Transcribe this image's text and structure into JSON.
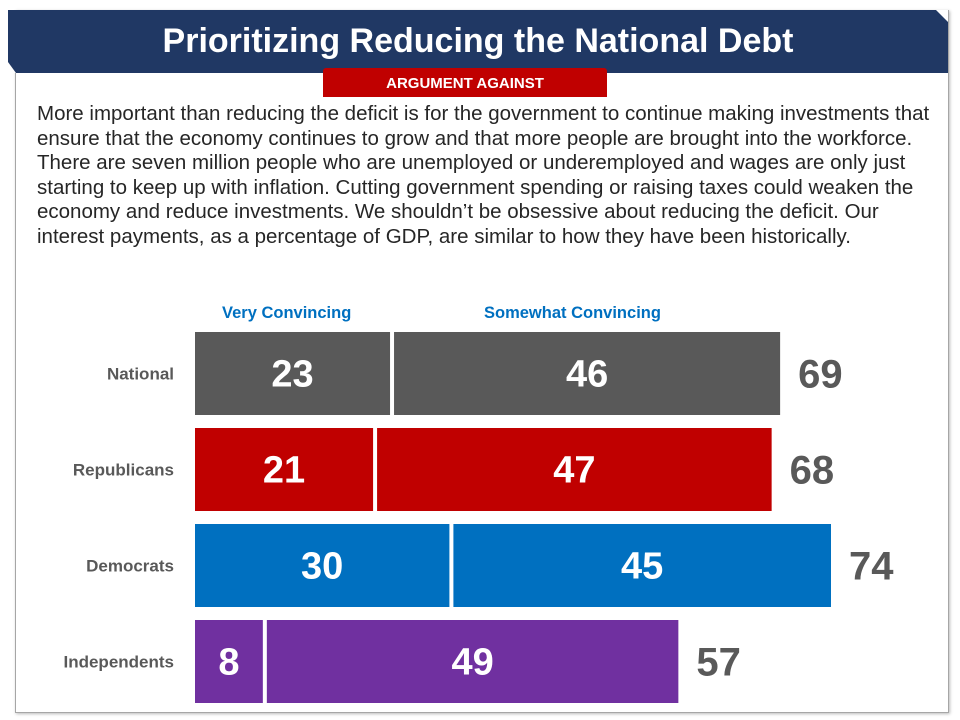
{
  "header": {
    "title": "Prioritizing Reducing the National Debt",
    "tab": "ARGUMENT AGAINST"
  },
  "body_text": "More important than reducing the deficit is for the government to continue making investments that ensure that the economy continues to grow and that more people are brought into the workforce. There are seven million people who are unemployed or underemployed and wages are only just starting to keep up with inflation. Cutting government spending or raising taxes could weaken the economy and reduce investments. We shouldn’t be obsessive about reducing the deficit. Our interest payments, as a percentage of GDP, are similar to how they have been historically.",
  "chart_data": {
    "type": "bar",
    "orientation": "horizontal",
    "stacked": true,
    "categories": [
      "National",
      "Republicans",
      "Democrats",
      "Independents"
    ],
    "series": [
      {
        "name": "Very Convincing",
        "values": [
          23,
          21,
          30,
          8
        ]
      },
      {
        "name": "Somewhat Convincing",
        "values": [
          46,
          47,
          45,
          49
        ]
      }
    ],
    "totals": [
      69,
      68,
      74,
      57
    ],
    "colors": [
      "#595959",
      "#c00000",
      "#0070c0",
      "#7030a0"
    ],
    "legend_color": "#0070c0",
    "legend_placement": "top",
    "xlim": [
      0,
      80
    ]
  }
}
